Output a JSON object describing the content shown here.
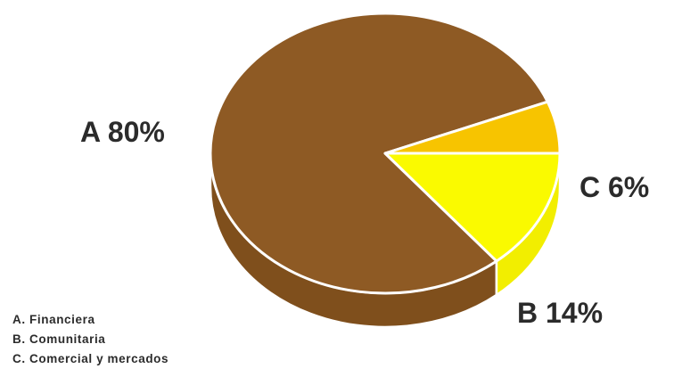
{
  "chart_data": {
    "type": "pie",
    "slices": [
      {
        "letter": "A",
        "name": "Financiera",
        "value": 80,
        "label": "A 80%",
        "color": "#8e5a24",
        "side_color": "#7f4f1c"
      },
      {
        "letter": "B",
        "name": "Comunitaria",
        "value": 14,
        "label": "B 14%",
        "color": "#fafa00",
        "side_color": "#f2ee00"
      },
      {
        "letter": "C",
        "name": "Comercial y mercados",
        "value": 6,
        "label": "C 6%",
        "color": "#f7c400",
        "side_color": "#efb800"
      }
    ],
    "legend": [
      "A. Financiera",
      "B. Comunitaria",
      "C. Comercial y mercados"
    ],
    "legend_placement": "bottom-left",
    "style": "3d-pie"
  }
}
